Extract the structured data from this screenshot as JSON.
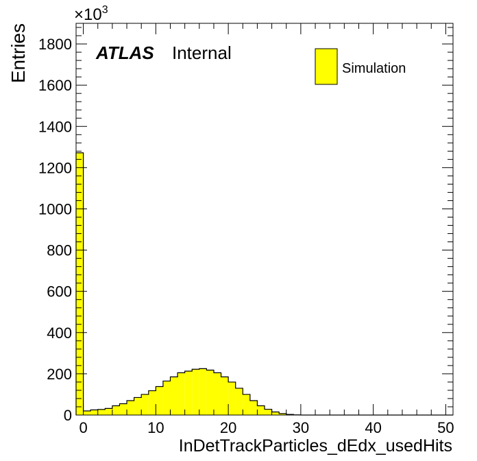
{
  "chart_data": {
    "type": "bar",
    "xlabel": "InDetTrackParticles_dEdx_usedHits",
    "ylabel": "Entries",
    "y_multiplier": "×10",
    "y_multiplier_exp": "3",
    "xlim": [
      -1,
      51
    ],
    "ylim": [
      0,
      1900
    ],
    "xticks": [
      0,
      10,
      20,
      30,
      40,
      50
    ],
    "yticks": [
      0,
      200,
      400,
      600,
      800,
      1000,
      1200,
      1400,
      1600,
      1800
    ],
    "bin_edges_start": -1,
    "bin_width": 1,
    "values": [
      1272,
      20,
      25,
      27,
      32,
      45,
      55,
      70,
      85,
      100,
      118,
      138,
      165,
      185,
      205,
      213,
      222,
      225,
      218,
      205,
      185,
      160,
      130,
      100,
      70,
      45,
      28,
      15,
      7,
      3,
      1,
      0,
      0,
      0,
      0,
      0,
      0,
      0,
      0,
      0,
      0,
      0,
      0,
      0,
      0,
      0,
      0,
      0,
      0,
      0,
      0,
      0
    ],
    "fill_color": "#ffff00",
    "legend": {
      "entry": "Simulation",
      "position": "top-right"
    },
    "annotation": {
      "bold": "ATLAS",
      "normal": "Internal"
    }
  }
}
